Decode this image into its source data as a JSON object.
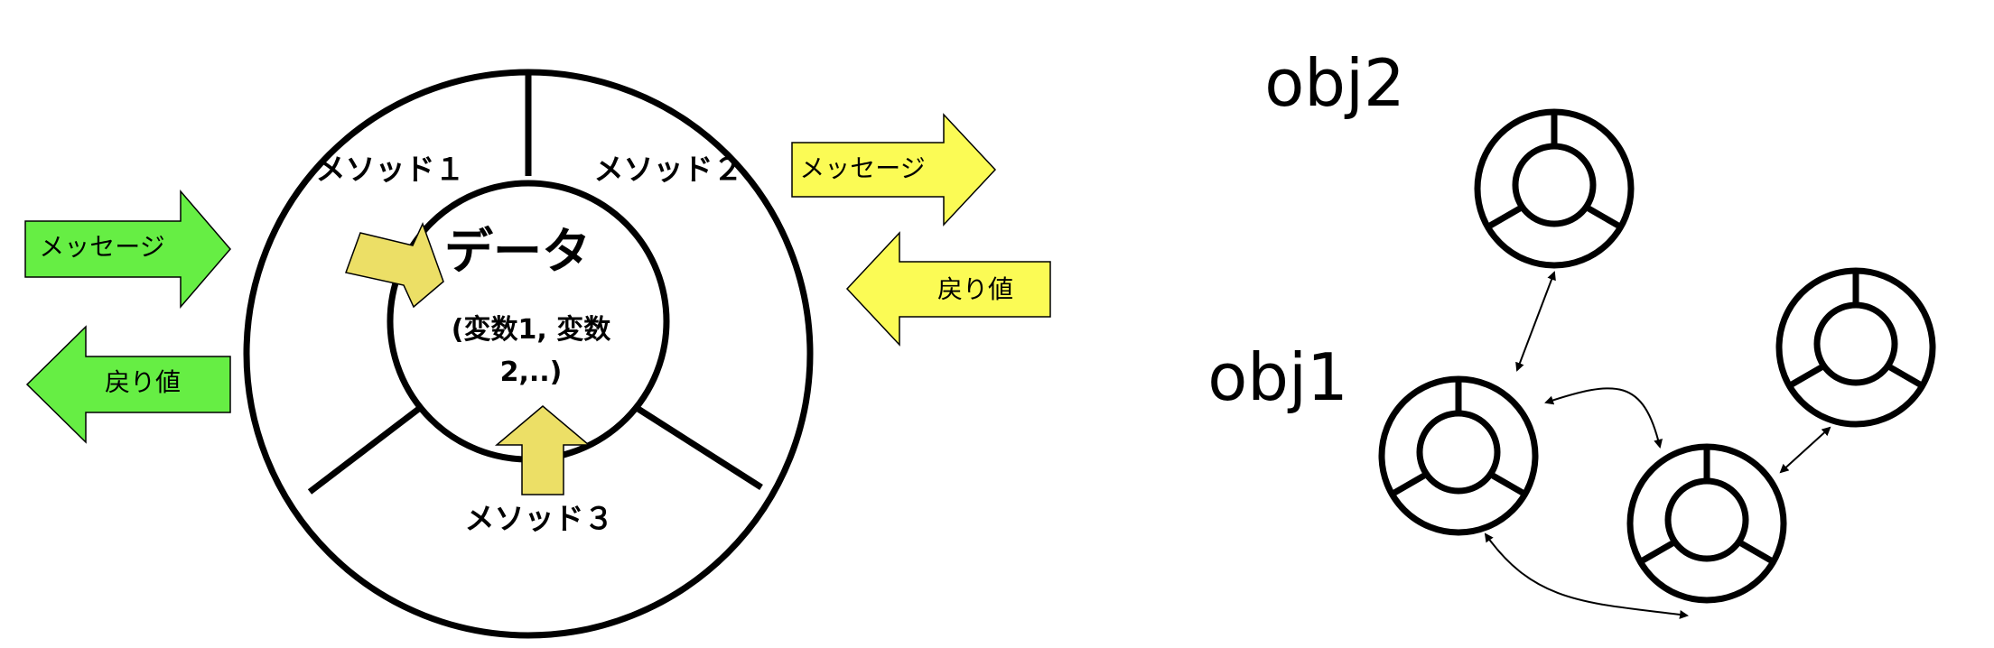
{
  "left_diagram": {
    "data_label": "データ",
    "variables_line1": "(変数1, 変数",
    "variables_line2": "2,..)",
    "method1": "メソッド１",
    "method2": "メソッド２",
    "method3": "メソッド３",
    "in_message": "メッセージ",
    "out_return": "戻り値",
    "call_message": "メッセージ",
    "call_return": "戻り値"
  },
  "right_diagram": {
    "obj1_label": "obj1",
    "obj2_label": "obj2"
  },
  "colors": {
    "green_arrow": "#66ee44",
    "yellow_arrow": "#fbfb55",
    "inner_arrow": "#ecdf66",
    "stroke": "#000000"
  }
}
